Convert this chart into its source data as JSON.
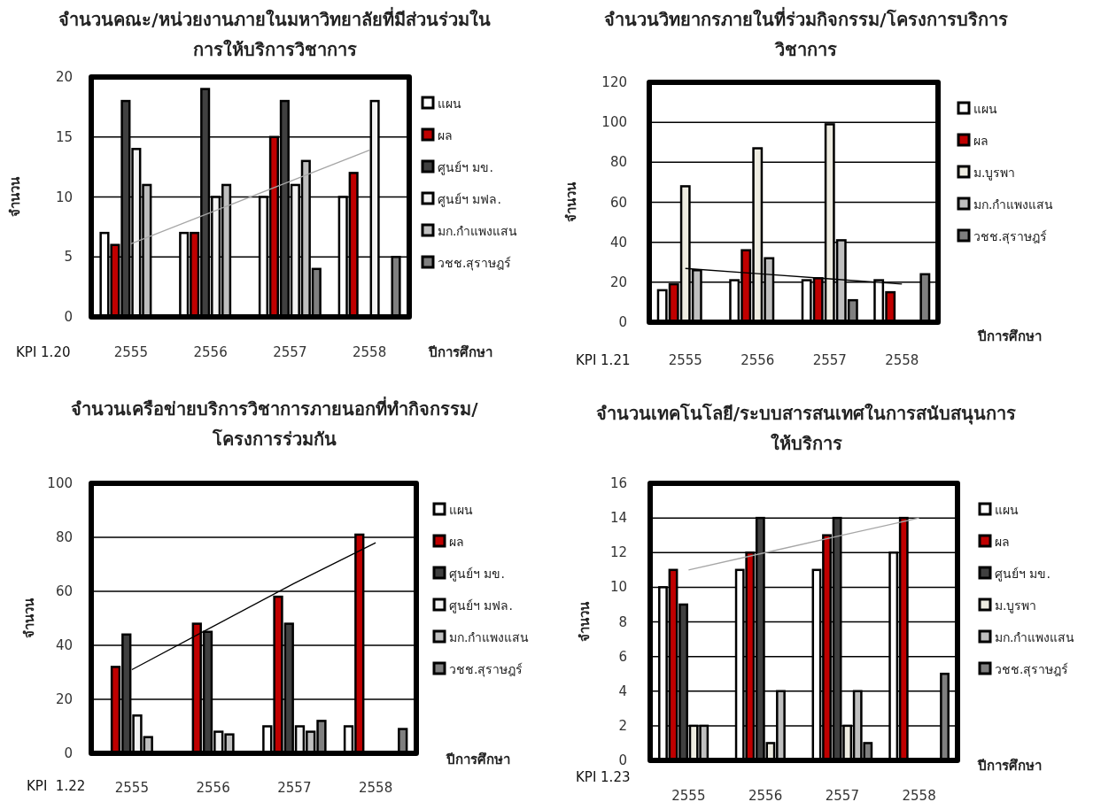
{
  "chart_data": [
    {
      "type": "bar",
      "title": "จำนวนคณะ/หน่วยงานภายในมหาวิทยาลัยที่มีส่วนร่วมในการให้บริการวิชาการ",
      "xlabel": "ปีการศึกษา",
      "ylabel": "จำนวน",
      "categories": [
        "2555",
        "2556",
        "2557",
        "2558"
      ],
      "ylim": [
        0,
        20
      ],
      "yticks": [
        0,
        5,
        10,
        15,
        20
      ],
      "grid": "y",
      "legend": "right",
      "annotations": [
        "KPI 1.20"
      ],
      "series": [
        {
          "name": "แผน",
          "color": "#ffffff",
          "values": [
            7,
            7,
            10,
            10
          ]
        },
        {
          "name": "ผล",
          "color": "#c00000",
          "values": [
            6,
            7,
            15,
            12
          ]
        },
        {
          "name": "ศูนย์ฯ มข.",
          "color": "#404040",
          "values": [
            18,
            19,
            18,
            null
          ]
        },
        {
          "name": "ศูนย์ฯ มฟล.",
          "color": "#f2f2f2",
          "values": [
            14,
            10,
            11,
            18
          ]
        },
        {
          "name": "มก.กำแพงแสน",
          "color": "#bfbfbf",
          "values": [
            11,
            11,
            13,
            null
          ]
        },
        {
          "name": "วชช.สุราษฎร์",
          "color": "#7f7f7f",
          "values": [
            null,
            null,
            4,
            5
          ]
        },
        {
          "type": "line",
          "color": "#a6a6a6",
          "values": [
            6.1,
            8.7,
            11.3,
            13.9
          ]
        }
      ]
    },
    {
      "type": "bar",
      "title": "จำนวนวิทยากรภายในที่ร่วมกิจกรรม/โครงการบริการวิชาการ",
      "xlabel": "ปีการศึกษา",
      "ylabel": "จำนวน",
      "categories": [
        "2555",
        "2556",
        "2557",
        "2558"
      ],
      "ylim": [
        0,
        120
      ],
      "yticks": [
        0,
        20,
        40,
        60,
        80,
        100,
        120
      ],
      "grid": "y",
      "legend": "right",
      "annotations": [
        "KPI 1.21"
      ],
      "series": [
        {
          "name": "แผน",
          "color": "#ffffff",
          "values": [
            16,
            21,
            21,
            21
          ]
        },
        {
          "name": "ผล",
          "color": "#c00000",
          "values": [
            19,
            36,
            22,
            15
          ]
        },
        {
          "name": "ม.บูรพา",
          "color": "#eeece1",
          "values": [
            68,
            87,
            99,
            null
          ]
        },
        {
          "name": "มก.กำแพงแสน",
          "color": "#bfbfbf",
          "values": [
            26,
            32,
            41,
            null
          ]
        },
        {
          "name": "วชช.สุราษฎร์",
          "color": "#7f7f7f",
          "values": [
            null,
            null,
            11,
            24
          ]
        },
        {
          "type": "line",
          "color": "#000000",
          "values": [
            26.9,
            24.3,
            21.7,
            19.1
          ]
        }
      ]
    },
    {
      "type": "bar",
      "title": "จำนวนเครือข่ายบริการวิชาการภายนอกที่ทำกิจกรรม/โครงการร่วมกัน",
      "xlabel": "ปีการศึกษา",
      "ylabel": "จำนวน",
      "categories": [
        "2555",
        "2556",
        "2557",
        "2558"
      ],
      "ylim": [
        0,
        100
      ],
      "yticks": [
        0,
        20,
        40,
        60,
        80,
        100
      ],
      "grid": "y",
      "legend": "right",
      "annotations": [
        "KPI  1.22"
      ],
      "series": [
        {
          "name": "แผน",
          "color": "#ffffff",
          "values": [
            null,
            null,
            10,
            10
          ]
        },
        {
          "name": "ผล",
          "color": "#c00000",
          "values": [
            32,
            48,
            58,
            81
          ]
        },
        {
          "name": "ศูนย์ฯ มข.",
          "color": "#404040",
          "values": [
            44,
            45,
            48,
            null
          ]
        },
        {
          "name": "ศูนย์ฯ มฟล.",
          "color": "#f2f2f2",
          "values": [
            14,
            8,
            10,
            null
          ]
        },
        {
          "name": "มก.กำแพงแสน",
          "color": "#bfbfbf",
          "values": [
            6,
            7,
            8,
            null
          ]
        },
        {
          "name": "วชช.สุราษฎร์",
          "color": "#7f7f7f",
          "values": [
            null,
            null,
            12,
            9
          ]
        },
        {
          "type": "line",
          "color": "#000000",
          "values": [
            31,
            47,
            63,
            78
          ]
        }
      ]
    },
    {
      "type": "bar",
      "title": "จำนวนเทคโนโลยี/ระบบสารสนเทศในการสนับสนุนการให้บริการ",
      "xlabel": "ปีการศึกษา",
      "ylabel": "จำนวน",
      "categories": [
        "2555",
        "2556",
        "2557",
        "2558"
      ],
      "ylim": [
        0,
        16
      ],
      "yticks": [
        0,
        2,
        4,
        6,
        8,
        10,
        12,
        14,
        16
      ],
      "grid": "y",
      "legend": "right",
      "annotations": [
        "KPI 1.23"
      ],
      "series": [
        {
          "name": "แผน",
          "color": "#ffffff",
          "values": [
            10,
            11,
            11,
            12
          ]
        },
        {
          "name": "ผล",
          "color": "#c00000",
          "values": [
            11,
            12,
            13,
            14
          ]
        },
        {
          "name": "ศูนย์ฯ มข.",
          "color": "#404040",
          "values": [
            9,
            14,
            14,
            null
          ]
        },
        {
          "name": "ม.บูรพา",
          "color": "#eeece1",
          "values": [
            2,
            1,
            2,
            null
          ]
        },
        {
          "name": "มก.กำแพงแสน",
          "color": "#bfbfbf",
          "values": [
            2,
            4,
            4,
            null
          ]
        },
        {
          "name": "วชช.สุราษฎร์",
          "color": "#7f7f7f",
          "values": [
            null,
            null,
            1,
            5
          ]
        },
        {
          "type": "line",
          "color": "#a6a6a6",
          "values": [
            11,
            12,
            13,
            14
          ]
        }
      ]
    }
  ]
}
